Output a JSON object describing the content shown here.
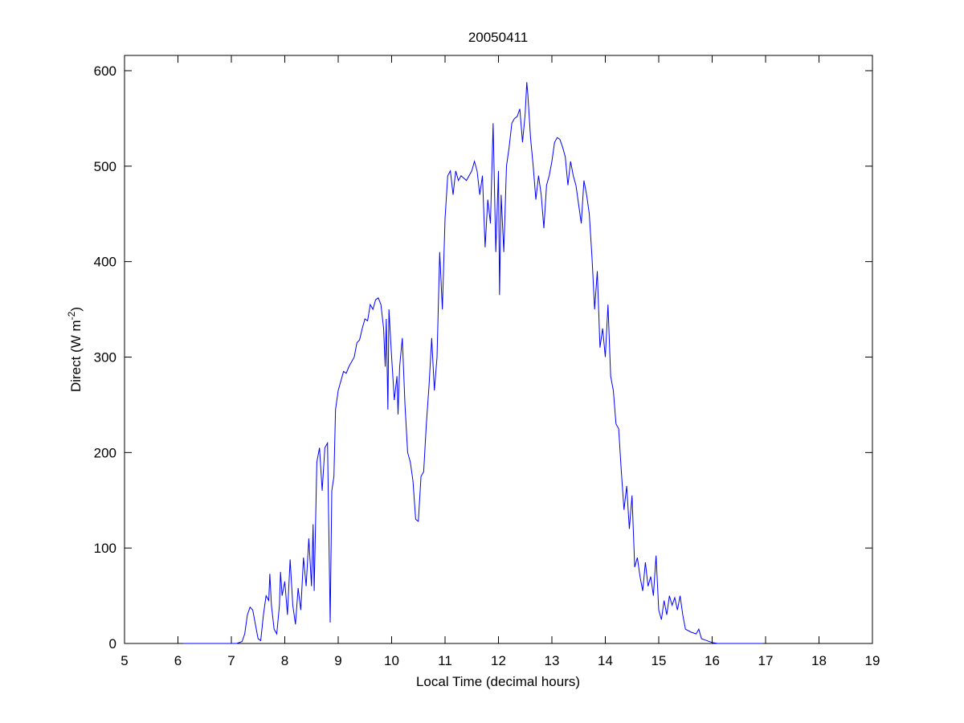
{
  "chart_data": {
    "type": "line",
    "title": "20050411",
    "x_label": "Local Time (decimal hours)",
    "y_label": "Direct (W m",
    "y_label_superscript": "-2",
    "y_label_end": ")",
    "color": "#0000ff",
    "x": [
      6.1,
      7.1,
      7.2,
      7.25,
      7.3,
      7.35,
      7.4,
      7.45,
      7.5,
      7.55,
      7.6,
      7.65,
      7.7,
      7.72,
      7.75,
      7.8,
      7.85,
      7.9,
      7.92,
      7.95,
      8.0,
      8.05,
      8.1,
      8.15,
      8.2,
      8.25,
      8.3,
      8.35,
      8.4,
      8.45,
      8.5,
      8.53,
      8.55,
      8.6,
      8.65,
      8.7,
      8.75,
      8.8,
      8.85,
      8.88,
      8.92,
      8.95,
      9.0,
      9.05,
      9.1,
      9.15,
      9.2,
      9.3,
      9.35,
      9.4,
      9.45,
      9.5,
      9.55,
      9.6,
      9.65,
      9.7,
      9.75,
      9.8,
      9.85,
      9.88,
      9.9,
      9.93,
      9.95,
      10.0,
      10.05,
      10.1,
      10.12,
      10.15,
      10.2,
      10.25,
      10.3,
      10.35,
      10.4,
      10.45,
      10.5,
      10.55,
      10.6,
      10.65,
      10.7,
      10.75,
      10.8,
      10.85,
      10.9,
      10.95,
      11.0,
      11.05,
      11.1,
      11.15,
      11.2,
      11.25,
      11.3,
      11.4,
      11.5,
      11.55,
      11.6,
      11.65,
      11.7,
      11.75,
      11.8,
      11.85,
      11.9,
      11.95,
      12.0,
      12.02,
      12.05,
      12.1,
      12.15,
      12.2,
      12.25,
      12.3,
      12.35,
      12.4,
      12.45,
      12.5,
      12.53,
      12.55,
      12.6,
      12.65,
      12.7,
      12.75,
      12.8,
      12.85,
      12.9,
      12.95,
      13.0,
      13.05,
      13.1,
      13.15,
      13.2,
      13.25,
      13.3,
      13.35,
      13.4,
      13.45,
      13.5,
      13.55,
      13.6,
      13.65,
      13.7,
      13.75,
      13.8,
      13.85,
      13.9,
      13.95,
      14.0,
      14.05,
      14.1,
      14.15,
      14.2,
      14.25,
      14.3,
      14.35,
      14.4,
      14.45,
      14.5,
      14.55,
      14.6,
      14.65,
      14.7,
      14.75,
      14.8,
      14.85,
      14.9,
      14.95,
      15.0,
      15.05,
      15.1,
      15.15,
      15.2,
      15.25,
      15.3,
      15.35,
      15.4,
      15.45,
      15.5,
      15.6,
      15.7,
      15.75,
      15.8,
      15.9,
      16.0,
      16.1,
      16.95
    ],
    "values": [
      0,
      0,
      2,
      10,
      30,
      38,
      35,
      20,
      5,
      3,
      30,
      50,
      45,
      73,
      40,
      15,
      10,
      40,
      75,
      50,
      65,
      30,
      88,
      40,
      20,
      58,
      35,
      90,
      60,
      110,
      60,
      125,
      55,
      190,
      205,
      160,
      205,
      210,
      22,
      160,
      175,
      245,
      265,
      275,
      285,
      283,
      290,
      300,
      315,
      318,
      330,
      340,
      338,
      355,
      350,
      360,
      362,
      355,
      330,
      290,
      340,
      245,
      350,
      300,
      255,
      280,
      240,
      290,
      320,
      250,
      200,
      190,
      170,
      130,
      128,
      175,
      180,
      230,
      270,
      320,
      265,
      300,
      410,
      350,
      445,
      490,
      495,
      470,
      495,
      485,
      490,
      485,
      495,
      505,
      495,
      470,
      490,
      415,
      465,
      440,
      545,
      410,
      495,
      365,
      470,
      410,
      500,
      520,
      545,
      550,
      552,
      560,
      525,
      555,
      588,
      575,
      530,
      500,
      465,
      490,
      470,
      435,
      480,
      490,
      505,
      525,
      530,
      528,
      520,
      510,
      480,
      505,
      490,
      480,
      460,
      440,
      485,
      470,
      450,
      405,
      350,
      390,
      310,
      330,
      300,
      355,
      280,
      265,
      230,
      225,
      180,
      140,
      165,
      120,
      155,
      80,
      90,
      70,
      55,
      85,
      60,
      70,
      50,
      92,
      35,
      25,
      45,
      30,
      50,
      40,
      48,
      35,
      50,
      30,
      15,
      12,
      10,
      15,
      5,
      3,
      1,
      0,
      0
    ],
    "xlim": [
      5,
      19
    ],
    "xticks": [
      5,
      6,
      7,
      8,
      9,
      10,
      11,
      12,
      13,
      14,
      15,
      16,
      17,
      18,
      19
    ],
    "ylim": [
      0,
      616
    ],
    "yticks": [
      0,
      100,
      200,
      300,
      400,
      500,
      600
    ]
  }
}
